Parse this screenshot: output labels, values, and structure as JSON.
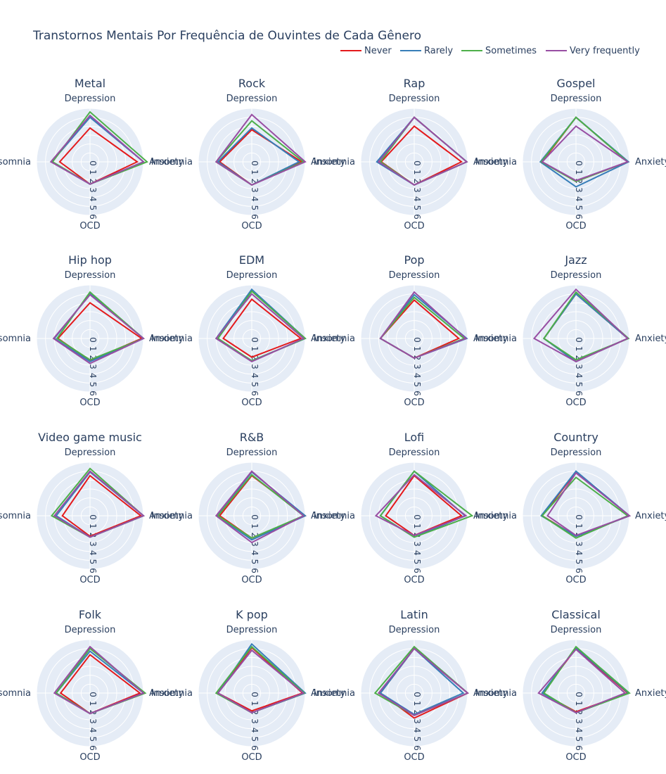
{
  "title": "Transtornos Mentais Por Frequência de Ouvintes de Cada Gênero",
  "chart_data": {
    "type": "radar",
    "title": "Transtornos Mentais Por Frequência de Ouvintes de Cada Gênero",
    "axes": [
      "Depression",
      "Anxiety",
      "OCD",
      "Insomnia"
    ],
    "radial_range": [
      0,
      6
    ],
    "radial_ticks": [
      "0",
      "1",
      "2",
      "3",
      "4",
      "5",
      "6"
    ],
    "grid": true,
    "legend_placement": "top-right",
    "series_names": [
      "Never",
      "Rarely",
      "Sometimes",
      "Very frequently"
    ],
    "series_colors": [
      "#e41a1c",
      "#377eb8",
      "#4daf4a",
      "#984ea3"
    ],
    "subplots": [
      {
        "title": "Metal",
        "series": [
          {
            "name": "Never",
            "values": [
              3.8,
              5.3,
              2.5,
              3.4
            ]
          },
          {
            "name": "Rarely",
            "values": [
              5.0,
              6.0,
              2.5,
              4.3
            ]
          },
          {
            "name": "Sometimes",
            "values": [
              5.6,
              6.4,
              2.5,
              4.2
            ]
          },
          {
            "name": "Very frequently",
            "values": [
              5.2,
              6.0,
              2.5,
              4.4
            ]
          }
        ]
      },
      {
        "title": "Rock",
        "series": [
          {
            "name": "Never",
            "values": [
              3.6,
              5.6,
              2.6,
              3.6
            ]
          },
          {
            "name": "Rarely",
            "values": [
              3.8,
              5.3,
              2.6,
              3.8
            ]
          },
          {
            "name": "Sometimes",
            "values": [
              4.6,
              5.8,
              2.6,
              4.0
            ]
          },
          {
            "name": "Very frequently",
            "values": [
              5.3,
              6.0,
              2.6,
              4.0
            ]
          }
        ]
      },
      {
        "title": "Rap",
        "series": [
          {
            "name": "Never",
            "values": [
              4.0,
              5.3,
              2.6,
              3.7
            ]
          },
          {
            "name": "Rarely",
            "values": [
              5.0,
              5.9,
              2.6,
              4.2
            ]
          },
          {
            "name": "Sometimes",
            "values": [
              5.0,
              5.9,
              2.6,
              3.8
            ]
          },
          {
            "name": "Very frequently",
            "values": [
              5.0,
              5.9,
              2.6,
              4.0
            ]
          }
        ]
      },
      {
        "title": "Gospel",
        "series": [
          {
            "name": "Never",
            "values": [
              5.0,
              5.8,
              2.2,
              3.8
            ]
          },
          {
            "name": "Rarely",
            "values": [
              5.0,
              5.9,
              2.8,
              4.0
            ]
          },
          {
            "name": "Sometimes",
            "values": [
              5.0,
              5.8,
              2.2,
              3.9
            ]
          },
          {
            "name": "Very frequently",
            "values": [
              4.0,
              5.8,
              2.1,
              3.8
            ]
          }
        ]
      },
      {
        "title": "Hip hop",
        "series": [
          {
            "name": "Never",
            "values": [
              4.0,
              5.8,
              2.5,
              3.6
            ]
          },
          {
            "name": "Rarely",
            "values": [
              5.0,
              6.0,
              2.6,
              4.0
            ]
          },
          {
            "name": "Sometimes",
            "values": [
              5.2,
              6.0,
              2.4,
              3.7
            ]
          },
          {
            "name": "Very frequently",
            "values": [
              4.9,
              6.0,
              2.8,
              4.1
            ]
          }
        ]
      },
      {
        "title": "EDM",
        "series": [
          {
            "name": "Never",
            "values": [
              4.4,
              5.5,
              2.1,
              3.2
            ]
          },
          {
            "name": "Rarely",
            "values": [
              5.5,
              6.0,
              2.5,
              4.0
            ]
          },
          {
            "name": "Sometimes",
            "values": [
              5.3,
              6.0,
              2.5,
              3.8
            ]
          },
          {
            "name": "Very frequently",
            "values": [
              5.0,
              5.8,
              2.6,
              4.0
            ]
          }
        ]
      },
      {
        "title": "Pop",
        "series": [
          {
            "name": "Never",
            "values": [
              4.3,
              5.0,
              2.2,
              3.8
            ]
          },
          {
            "name": "Rarely",
            "values": [
              4.9,
              5.9,
              2.2,
              3.8
            ]
          },
          {
            "name": "Sometimes",
            "values": [
              4.6,
              5.6,
              2.2,
              3.8
            ]
          },
          {
            "name": "Very frequently",
            "values": [
              5.2,
              5.8,
              2.2,
              3.8
            ]
          }
        ]
      },
      {
        "title": "Jazz",
        "series": [
          {
            "name": "Never",
            "values": [
              5.0,
              5.8,
              2.6,
              3.6
            ]
          },
          {
            "name": "Rarely",
            "values": [
              5.0,
              5.8,
              2.6,
              3.6
            ]
          },
          {
            "name": "Sometimes",
            "values": [
              5.2,
              5.9,
              2.4,
              3.6
            ]
          },
          {
            "name": "Very frequently",
            "values": [
              5.5,
              5.8,
              2.6,
              4.7
            ]
          }
        ]
      },
      {
        "title": "Video game music",
        "series": [
          {
            "name": "Never",
            "values": [
              4.5,
              5.7,
              2.3,
              3.1
            ]
          },
          {
            "name": "Rarely",
            "values": [
              4.9,
              6.0,
              2.4,
              3.8
            ]
          },
          {
            "name": "Sometimes",
            "values": [
              5.3,
              6.0,
              2.4,
              4.3
            ]
          },
          {
            "name": "Very frequently",
            "values": [
              5.0,
              6.0,
              2.4,
              4.0
            ]
          }
        ]
      },
      {
        "title": "R&B",
        "series": [
          {
            "name": "Never",
            "values": [
              4.5,
              6.0,
              2.5,
              3.6
            ]
          },
          {
            "name": "Rarely",
            "values": [
              4.9,
              6.0,
              2.7,
              3.9
            ]
          },
          {
            "name": "Sometimes",
            "values": [
              4.6,
              5.8,
              2.5,
              3.8
            ]
          },
          {
            "name": "Very frequently",
            "values": [
              5.0,
              5.8,
              3.0,
              4.0
            ]
          }
        ]
      },
      {
        "title": "Lofi",
        "series": [
          {
            "name": "Never",
            "values": [
              4.5,
              5.3,
              2.2,
              3.2
            ]
          },
          {
            "name": "Rarely",
            "values": [
              5.0,
              5.7,
              2.4,
              3.8
            ]
          },
          {
            "name": "Sometimes",
            "values": [
              5.0,
              6.5,
              2.4,
              3.8
            ]
          },
          {
            "name": "Very frequently",
            "values": [
              4.6,
              5.8,
              2.2,
              4.3
            ]
          }
        ]
      },
      {
        "title": "Country",
        "series": [
          {
            "name": "Never",
            "values": [
              4.9,
              6.0,
              2.3,
              3.8
            ]
          },
          {
            "name": "Rarely",
            "values": [
              5.0,
              6.0,
              2.3,
              3.9
            ]
          },
          {
            "name": "Sometimes",
            "values": [
              4.3,
              5.8,
              2.5,
              3.8
            ]
          },
          {
            "name": "Very frequently",
            "values": [
              4.8,
              6.0,
              2.2,
              3.2
            ]
          }
        ]
      },
      {
        "title": "Folk",
        "series": [
          {
            "name": "Never",
            "values": [
              4.3,
              5.6,
              2.3,
              3.3
            ]
          },
          {
            "name": "Rarely",
            "values": [
              4.7,
              6.0,
              2.3,
              3.8
            ]
          },
          {
            "name": "Sometimes",
            "values": [
              5.0,
              6.2,
              2.3,
              3.8
            ]
          },
          {
            "name": "Very frequently",
            "values": [
              5.2,
              6.0,
              2.3,
              4.0
            ]
          }
        ]
      },
      {
        "title": "K pop",
        "series": [
          {
            "name": "Never",
            "values": [
              5.1,
              5.7,
              2.0,
              3.8
            ]
          },
          {
            "name": "Rarely",
            "values": [
              5.5,
              6.0,
              2.2,
              3.8
            ]
          },
          {
            "name": "Sometimes",
            "values": [
              5.2,
              5.9,
              2.2,
              4.0
            ]
          },
          {
            "name": "Very frequently",
            "values": [
              4.8,
              5.8,
              2.2,
              3.8
            ]
          }
        ]
      },
      {
        "title": "Latin",
        "series": [
          {
            "name": "Never",
            "values": [
              5.0,
              6.0,
              2.8,
              3.8
            ]
          },
          {
            "name": "Rarely",
            "values": [
              5.0,
              5.5,
              2.4,
              3.8
            ]
          },
          {
            "name": "Sometimes",
            "values": [
              5.2,
              6.0,
              2.5,
              4.4
            ]
          },
          {
            "name": "Very frequently",
            "values": [
              5.0,
              6.0,
              2.5,
              4.0
            ]
          }
        ]
      },
      {
        "title": "Classical",
        "series": [
          {
            "name": "Never",
            "values": [
              5.0,
              5.8,
              2.1,
              3.8
            ]
          },
          {
            "name": "Rarely",
            "values": [
              5.1,
              5.9,
              2.2,
              3.8
            ]
          },
          {
            "name": "Sometimes",
            "values": [
              5.2,
              6.0,
              2.2,
              3.6
            ]
          },
          {
            "name": "Very frequently",
            "values": [
              4.9,
              5.5,
              2.2,
              4.2
            ]
          }
        ]
      }
    ]
  }
}
